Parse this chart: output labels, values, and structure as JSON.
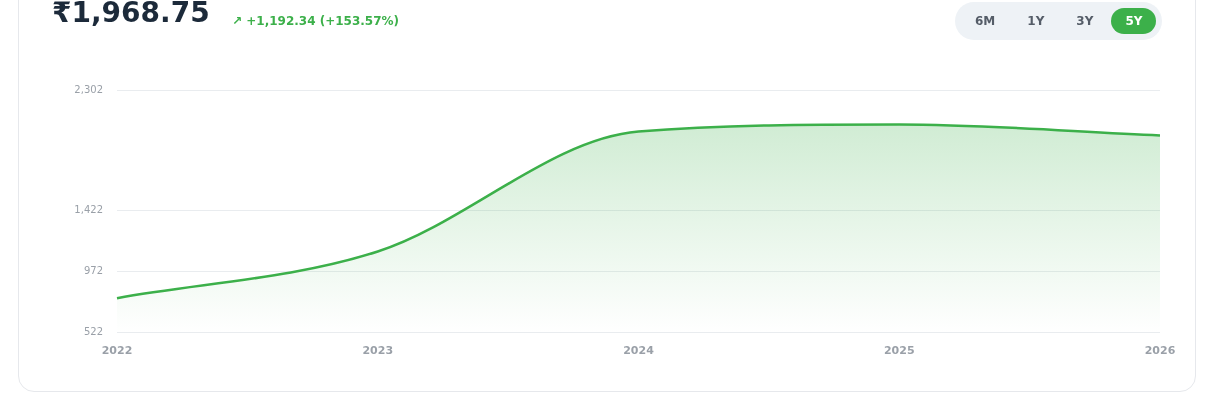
{
  "chart_data": {
    "type": "area",
    "title": "₹1,968.75",
    "subtitle": "↗ +1,192.34 (+153.57%)",
    "annotations": [
      "6M",
      "1Y",
      "3Y",
      "5Y"
    ],
    "categories": [
      "2022",
      "2023",
      "2024",
      "2025",
      "2026"
    ],
    "series": [
      {
        "color": "#3cb04a",
        "values": [
          776,
          1118,
          1997,
          2049,
          1969
        ]
      }
    ],
    "ylim": [
      522,
      2302
    ],
    "yticks": [
      {
        "value": 522,
        "label": "522"
      },
      {
        "value": 972,
        "label": "972"
      },
      {
        "value": 1422,
        "label": "1,422"
      },
      {
        "value": 2302,
        "label": "2,302"
      }
    ],
    "grid": "y",
    "legend": false,
    "marker": "none",
    "line_style": "solid"
  }
}
